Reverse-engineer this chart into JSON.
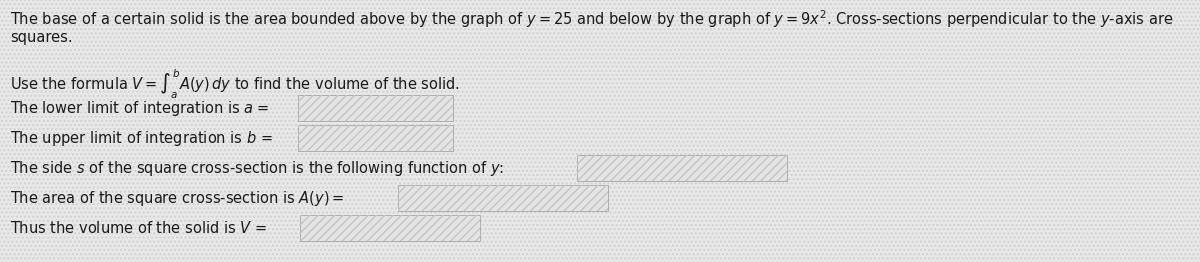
{
  "bg_color": "#e8e8e8",
  "stripe_color": "#d0d0d0",
  "box_bg": "#e0e0e0",
  "box_stripe": "#c8c8c8",
  "box_edge": "#999999",
  "text_color": "#1a1a1a",
  "title_line1": "The base of a certain solid is the area bounded above by the graph of $y = 25$ and below by the graph of $y = 9x^2$. Cross-sections perpendicular to the $y$-axis are",
  "title_line2": "squares.",
  "formula_line": "Use the formula $V = \\int_a^b A(y)\\, dy$ to find the volume of the solid.",
  "line1": "The lower limit of integration is $a$ =",
  "line2": "The upper limit of integration is $b$ =",
  "line3": "The side $s$ of the square cross-section is the following function of $y$:",
  "line4": "The area of the square cross-section is $A(y)=$",
  "line5": "Thus the volume of the solid is $V$ =",
  "font_size": 10.5,
  "fig_width": 12.0,
  "fig_height": 2.62,
  "dpi": 100
}
